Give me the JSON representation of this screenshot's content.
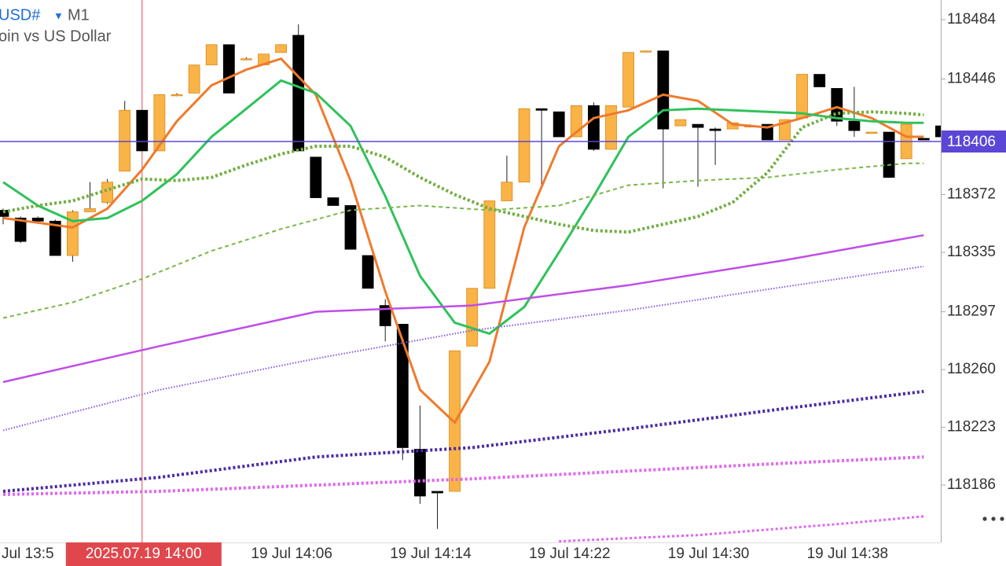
{
  "chart_data": {
    "type": "candlestick",
    "symbol": "USD#",
    "timeframe": "M1",
    "description": "oin vs US Dollar",
    "x_edge_label": "Jul 13:5",
    "categories": [
      null,
      null,
      null,
      null,
      null,
      null,
      null,
      null,
      "2025.07.19 14:00",
      null,
      null,
      null,
      null,
      null,
      "19 Jul 14:06",
      null,
      null,
      null,
      null,
      null,
      null,
      null,
      "19 Jul 14:14",
      null,
      null,
      null,
      null,
      null,
      null,
      null,
      "19 Jul 14:22",
      null,
      null,
      null,
      null,
      null,
      null,
      null,
      "19 Jul 14:30",
      null,
      null,
      null,
      null,
      null,
      null,
      null,
      "19 Jul 14:38",
      null,
      null,
      null,
      null,
      null,
      null,
      null,
      null
    ],
    "crosshair_index": 8,
    "ohlc": [
      [
        118362,
        118363,
        118353,
        118358
      ],
      [
        118357,
        118358,
        118341,
        118342
      ],
      [
        118357,
        118358,
        118355,
        118355
      ],
      [
        118355,
        118356,
        118333,
        118333
      ],
      [
        118333,
        118362,
        118329,
        118361
      ],
      [
        118361,
        118380,
        118361,
        118363
      ],
      [
        118367,
        118382,
        118366,
        118380
      ],
      [
        118387,
        118432,
        118387,
        118426
      ],
      [
        118426,
        118426,
        118400,
        118400
      ],
      [
        118400,
        118436,
        118400,
        118436
      ],
      [
        118436,
        118437,
        118435,
        118436
      ],
      [
        118437,
        118455,
        118437,
        118455
      ],
      [
        118455,
        118468,
        118455,
        118468
      ],
      [
        118468,
        118468,
        118437,
        118437
      ],
      [
        118459,
        118460,
        118458,
        118459
      ],
      [
        118455,
        118462,
        118455,
        118462
      ],
      [
        118463,
        118468,
        118463,
        118468
      ],
      [
        118474,
        118481,
        118400,
        118400
      ],
      [
        118396,
        118396,
        118370,
        118370
      ],
      [
        118370,
        118370,
        118365,
        118365
      ],
      [
        118365,
        118365,
        118337,
        118337
      ],
      [
        118333,
        118333,
        118312,
        118312
      ],
      [
        118301,
        118305,
        118278,
        118288
      ],
      [
        118289,
        118289,
        118202,
        118210
      ],
      [
        118209,
        118237,
        118174,
        118179
      ],
      [
        118182,
        118182,
        118158,
        118181
      ],
      [
        118182,
        118272,
        118182,
        118272
      ],
      [
        118275,
        118312,
        118275,
        118312
      ],
      [
        118312,
        118368,
        118312,
        118368
      ],
      [
        118368,
        118397,
        118368,
        118380
      ],
      [
        118380,
        118427,
        118380,
        118427
      ],
      [
        118427,
        118427,
        118378,
        118426
      ],
      [
        118425,
        118425,
        118409,
        118409
      ],
      [
        118409,
        118429,
        118409,
        118429
      ],
      [
        118429,
        118431,
        118400,
        118401
      ],
      [
        118401,
        118429,
        118401,
        118429
      ],
      [
        118428,
        118463,
        118428,
        118463
      ],
      [
        118464,
        118464,
        118463,
        118464
      ],
      [
        118464,
        118464,
        118376,
        118414
      ],
      [
        118416,
        118420,
        118416,
        118420
      ],
      [
        118417,
        118417,
        118377,
        118415
      ],
      [
        118414,
        118415,
        118391,
        118413
      ],
      [
        118414,
        118418,
        118414,
        118418
      ],
      [
        118416,
        118417,
        118415,
        118416
      ],
      [
        118417,
        118417,
        118407,
        118407
      ],
      [
        118407,
        118420,
        118407,
        118420
      ],
      [
        118421,
        118449,
        118421,
        118449
      ],
      [
        118449,
        118449,
        118441,
        118441
      ],
      [
        118440,
        118440,
        118416,
        118419
      ],
      [
        118419,
        118441,
        118409,
        118413
      ],
      [
        118412,
        118412,
        118412,
        118412
      ],
      [
        118412,
        118412,
        118383,
        118383
      ],
      [
        118395,
        118417,
        118395,
        118417
      ],
      [
        118408,
        118408,
        118407,
        118407
      ],
      [
        118416,
        118416,
        118409,
        118409
      ]
    ],
    "up_color": "#f9b347",
    "down_color": "#000000",
    "series": [
      {
        "color": "#f07a2c",
        "style": "solid",
        "width": 3,
        "x": [
          0,
          2,
          4,
          6,
          8,
          10,
          12,
          14,
          16,
          18,
          20,
          22,
          24,
          26,
          28,
          30,
          32,
          34,
          36,
          38,
          40,
          42,
          44,
          46,
          48,
          50,
          52,
          53
        ],
        "values": [
          118357,
          118354,
          118351,
          118363,
          118388,
          118419,
          118442,
          118452,
          118459,
          118436,
          118381,
          118310,
          118247,
          118226,
          118265,
          118351,
          118403,
          118421,
          118426,
          118436,
          118432,
          118417,
          118415,
          118421,
          118428,
          118421,
          118409,
          118409
        ]
      },
      {
        "color": "#2fc25b",
        "style": "solid",
        "width": 3,
        "x": [
          0,
          2,
          4,
          6,
          8,
          10,
          12,
          14,
          16,
          18,
          20,
          22,
          24,
          26,
          28,
          30,
          32,
          34,
          36,
          38,
          40,
          42,
          44,
          46,
          48,
          50,
          52,
          53
        ],
        "values": [
          118380,
          118365,
          118355,
          118357,
          118368,
          118385,
          118409,
          118427,
          118445,
          118437,
          118416,
          118371,
          118320,
          118290,
          118283,
          118300,
          118335,
          118371,
          118409,
          118426,
          118427,
          118426,
          118425,
          118424,
          118421,
          118419,
          118418,
          118418
        ]
      },
      {
        "color": "#6fae3e",
        "style": "dotted",
        "width": 4,
        "x": [
          0,
          2,
          4,
          6,
          8,
          10,
          12,
          14,
          16,
          18,
          20,
          22,
          24,
          26,
          28,
          30,
          32,
          34,
          36,
          38,
          40,
          42,
          44,
          46,
          48,
          50,
          52,
          53
        ],
        "values": [
          118361,
          118365,
          118368,
          118375,
          118382,
          118381,
          118383,
          118391,
          118398,
          118403,
          118403,
          118396,
          118383,
          118372,
          118363,
          118358,
          118353,
          118349,
          118348,
          118353,
          118358,
          118367,
          118386,
          118415,
          118424,
          118425,
          118424,
          118423
        ]
      },
      {
        "color": "#7ab648",
        "style": "dashed",
        "width": 2,
        "x": [
          0,
          4,
          8,
          12,
          16,
          20,
          24,
          28,
          32,
          36,
          40,
          44,
          48,
          52,
          53
        ],
        "values": [
          118293,
          118303,
          118318,
          118336,
          118350,
          118362,
          118365,
          118362,
          118365,
          118378,
          118381,
          118383,
          118388,
          118392,
          118392
        ]
      },
      {
        "color": "#c04de8",
        "style": "solid",
        "width": 2.5,
        "x": [
          0,
          9,
          18,
          27,
          36,
          45,
          53
        ],
        "values": [
          118252,
          118275,
          118297,
          118301,
          118314,
          118330,
          118346
        ]
      },
      {
        "color": "#8a58e2",
        "style": "fine",
        "width": 2,
        "x": [
          0,
          9,
          18,
          27,
          36,
          45,
          53
        ],
        "values": [
          118221,
          118247,
          118267,
          118285,
          118298,
          118313,
          118326
        ]
      },
      {
        "color": "#4a2aa6",
        "style": "dotted",
        "width": 4,
        "x": [
          0,
          9,
          18,
          27,
          36,
          45,
          53
        ],
        "values": [
          118182,
          118191,
          118204,
          118210,
          118222,
          118235,
          118246
        ]
      },
      {
        "color": "#e066f0",
        "style": "dotted",
        "width": 4,
        "x": [
          0,
          9,
          18,
          27,
          36,
          45,
          53
        ],
        "values": [
          118180,
          118182,
          118186,
          118190,
          118195,
          118200,
          118204
        ]
      },
      {
        "color": "#e066f0",
        "style": "dotted",
        "width": 3,
        "x": [
          32,
          40,
          48,
          53
        ],
        "values": [
          118150,
          118154,
          118161,
          118166
        ]
      }
    ],
    "current_price": 118406,
    "current_price_color": "#5b47d6",
    "crosshair_color": "#e0474c",
    "ylim": [
      118149.3,
      118496.6
    ],
    "yticks": [
      118484,
      118446,
      118372,
      118335,
      118297,
      118260,
      118223,
      118186
    ]
  }
}
